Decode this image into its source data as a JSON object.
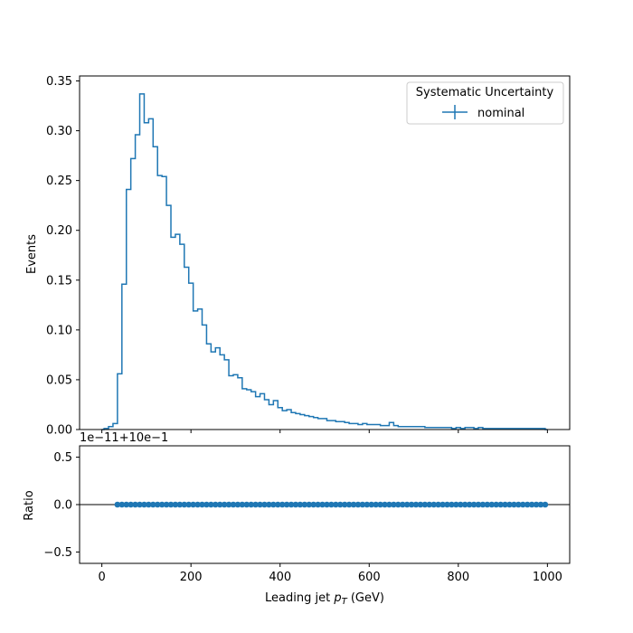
{
  "colors": {
    "series": "#1f77b4",
    "axes": "#000000",
    "legend_border": "#cccccc"
  },
  "chart_data": [
    {
      "type": "line",
      "drawstyle": "steps-mid",
      "title": "",
      "xlabel": "",
      "ylabel": "Events",
      "xlim": [
        -50,
        1050
      ],
      "ylim": [
        0,
        0.355
      ],
      "xticks": [
        0,
        200,
        400,
        600,
        800,
        1000
      ],
      "xtick_labels_shown": false,
      "yticks": [
        0.0,
        0.05,
        0.1,
        0.15,
        0.2,
        0.25,
        0.3,
        0.35
      ],
      "ytick_labels": [
        "0.00",
        "0.05",
        "0.10",
        "0.15",
        "0.20",
        "0.25",
        "0.30",
        "0.35"
      ],
      "legend": {
        "title": "Systematic Uncertainty",
        "placement": "top-right",
        "entries": [
          "nominal"
        ]
      },
      "series": [
        {
          "name": "nominal",
          "x": [
            0,
            10,
            20,
            30,
            40,
            50,
            60,
            70,
            80,
            90,
            100,
            110,
            120,
            130,
            140,
            150,
            160,
            170,
            180,
            190,
            200,
            210,
            220,
            230,
            240,
            250,
            260,
            270,
            280,
            290,
            300,
            310,
            320,
            330,
            340,
            350,
            360,
            370,
            380,
            390,
            400,
            410,
            420,
            430,
            440,
            450,
            460,
            470,
            480,
            490,
            500,
            510,
            520,
            530,
            540,
            550,
            560,
            570,
            580,
            590,
            600,
            610,
            620,
            630,
            640,
            650,
            660,
            670,
            680,
            690,
            700,
            710,
            720,
            730,
            740,
            750,
            760,
            770,
            780,
            790,
            800,
            810,
            820,
            830,
            840,
            850,
            860,
            870,
            880,
            890,
            900,
            910,
            920,
            930,
            940,
            950,
            960,
            970,
            980,
            990,
            1000
          ],
          "values": [
            0,
            0.001,
            0.003,
            0.006,
            0.056,
            0.146,
            0.241,
            0.272,
            0.296,
            0.337,
            0.308,
            0.312,
            0.284,
            0.255,
            0.254,
            0.225,
            0.193,
            0.196,
            0.186,
            0.163,
            0.147,
            0.119,
            0.121,
            0.105,
            0.086,
            0.078,
            0.082,
            0.075,
            0.07,
            0.054,
            0.055,
            0.052,
            0.041,
            0.04,
            0.038,
            0.033,
            0.036,
            0.03,
            0.025,
            0.029,
            0.022,
            0.019,
            0.02,
            0.017,
            0.016,
            0.015,
            0.014,
            0.013,
            0.012,
            0.011,
            0.011,
            0.009,
            0.009,
            0.008,
            0.008,
            0.007,
            0.006,
            0.006,
            0.005,
            0.006,
            0.005,
            0.005,
            0.005,
            0.004,
            0.004,
            0.007,
            0.004,
            0.003,
            0.003,
            0.003,
            0.003,
            0.003,
            0.003,
            0.002,
            0.002,
            0.002,
            0.002,
            0.002,
            0.002,
            0.001,
            0.002,
            0.001,
            0.002,
            0.002,
            0.001,
            0.002,
            0.001,
            0.001,
            0.001,
            0.001,
            0.001,
            0.001,
            0.001,
            0.001,
            0.001,
            0.001,
            0.001,
            0.001,
            0.001,
            0.001,
            0.0
          ]
        }
      ]
    },
    {
      "type": "scatter",
      "title": "",
      "xlabel": "Leading jet  p_T (GeV)",
      "xlabel_parts": {
        "prefix": "Leading jet  ",
        "symbol": "p",
        "subscript": "T",
        "suffix": " (GeV)"
      },
      "ylabel": "Ratio",
      "offset_text": "1e−11+10e−1",
      "xlim": [
        -50,
        1050
      ],
      "ylim": [
        -0.62,
        0.62
      ],
      "xticks": [
        0,
        200,
        400,
        600,
        800,
        1000
      ],
      "xtick_labels": [
        "0",
        "200",
        "400",
        "600",
        "800",
        "1000"
      ],
      "yticks": [
        -0.5,
        0.0,
        0.5
      ],
      "ytick_labels": [
        "−0.5",
        "0.0",
        "0.5"
      ],
      "reference_line": 0.0,
      "series": [
        {
          "name": "nominal",
          "x": [
            35,
            45,
            55,
            65,
            75,
            85,
            95,
            105,
            115,
            125,
            135,
            145,
            155,
            165,
            175,
            185,
            195,
            205,
            215,
            225,
            235,
            245,
            255,
            265,
            275,
            285,
            295,
            305,
            315,
            325,
            335,
            345,
            355,
            365,
            375,
            385,
            395,
            405,
            415,
            425,
            435,
            445,
            455,
            465,
            475,
            485,
            495,
            505,
            515,
            525,
            535,
            545,
            555,
            565,
            575,
            585,
            595,
            605,
            615,
            625,
            635,
            645,
            655,
            665,
            675,
            685,
            695,
            705,
            715,
            725,
            735,
            745,
            755,
            765,
            775,
            785,
            795,
            805,
            815,
            825,
            835,
            845,
            855,
            865,
            875,
            885,
            895,
            905,
            915,
            925,
            935,
            945,
            955,
            965,
            975,
            985,
            995
          ],
          "y_offset_from_shown": 0
        }
      ]
    }
  ]
}
